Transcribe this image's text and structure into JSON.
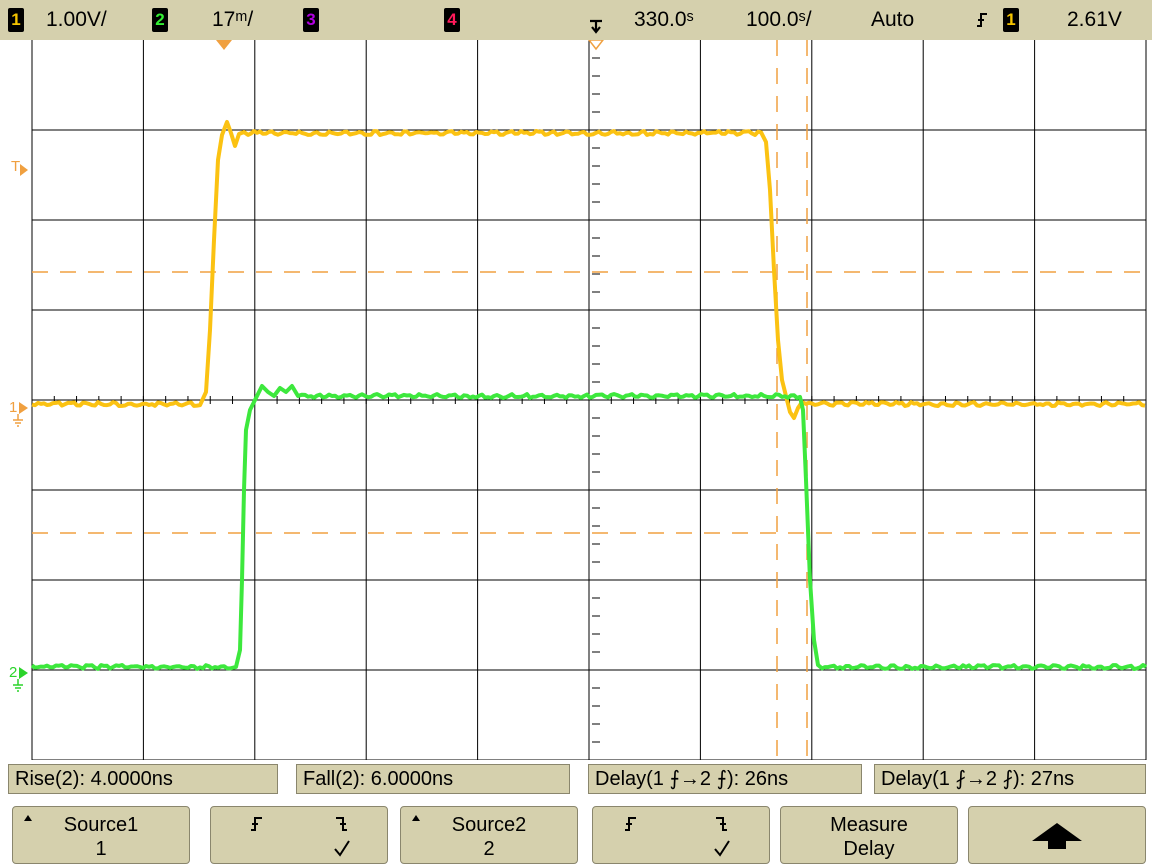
{
  "status_bar": {
    "ch1": {
      "number": "1",
      "scale": "1.00V/",
      "color": "#f5c400"
    },
    "ch2": {
      "number": "2",
      "scale": "17ᵐ/",
      "color": "#33ee33"
    },
    "ch3": {
      "number": "3",
      "color": "#b000e0"
    },
    "ch4": {
      "number": "4",
      "color": "#ff1a5a"
    },
    "time_delay": "330.0ˢ",
    "time_scale": "100.0ˢ/",
    "trigger_mode": "Auto",
    "trigger_source": "1",
    "trigger_level": "2.61V"
  },
  "display_markers": {
    "trigger_marker": "T",
    "ch1_ground": "1",
    "ch2_ground": "2"
  },
  "colors": {
    "ch1_trace": "#fbc212",
    "ch2_trace": "#3de83d",
    "cursor": "#f0a040",
    "grid": "#000000",
    "panel": "#d5d0ad"
  },
  "measurements": [
    {
      "label": "Rise(2): 4.0000ns"
    },
    {
      "label": "Fall(2): 6.0000ns"
    },
    {
      "label": "Delay(1 ⨍→2 ⨍): 26ns"
    },
    {
      "label": "Delay(1 ⨏→2 ⨏): 27ns"
    }
  ],
  "softkeys": {
    "source1": {
      "line1": "Source1",
      "line2": "1"
    },
    "edge1": {
      "rise_icon": "rising-edge-icon",
      "fall_icon": "falling-edge-icon",
      "selected": "falling"
    },
    "source2": {
      "line1": "Source2",
      "line2": "2"
    },
    "edge2": {
      "rise_icon": "rising-edge-icon",
      "fall_icon": "falling-edge-icon",
      "selected": "falling"
    },
    "measure": {
      "line1": "Measure",
      "line2": "Delay"
    },
    "return_icon": "up-arrow-icon"
  }
}
